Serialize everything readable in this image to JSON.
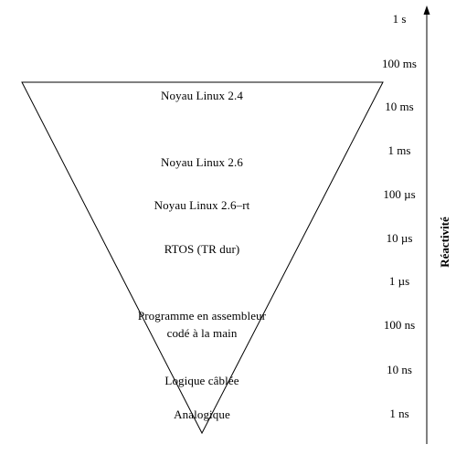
{
  "diagram": {
    "layers": [
      {
        "label": "Noyau Linux 2.4"
      },
      {
        "label": "Noyau Linux 2.6"
      },
      {
        "label": "Noyau Linux 2.6–rt"
      },
      {
        "label": "RTOS (TR dur)"
      },
      {
        "label": "Programme en assembleur\ncodé à la main"
      },
      {
        "label": "Logique câblée"
      },
      {
        "label": "Analogique"
      }
    ],
    "scale": [
      "1 s",
      "100 ms",
      "10 ms",
      "1 ms",
      "100 µs",
      "10 µs",
      "1 µs",
      "100 ns",
      "10 ns",
      "1 ns"
    ],
    "axis_title": "Réactivité",
    "colors": {
      "line": "#000000",
      "background": "#ffffff"
    }
  }
}
